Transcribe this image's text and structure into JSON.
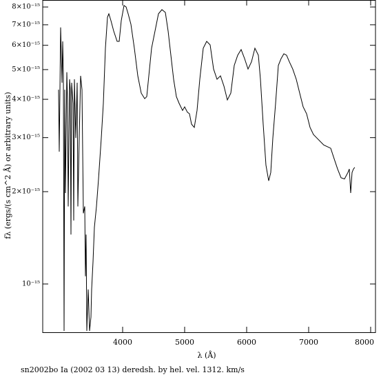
{
  "chart_data": {
    "type": "line",
    "xlabel": "λ (Å)",
    "ylabel": "fλ (ergs/(s cm^2 Å) or arbitrary units)",
    "footer": "sn2002bo Ia (2002 03 13) deredsh. by hel. vel.  1312. km/s",
    "color": "#000000",
    "log_y": true,
    "xlim": [
      2711,
      8078
    ],
    "ylim": [
      6.96e-16,
      8.43e-15
    ],
    "xticks": [
      4000,
      5000,
      6000,
      7000,
      8000
    ],
    "yticks": [
      {
        "value": 1e-15,
        "label": "10⁻¹⁵"
      },
      {
        "value": 2e-15,
        "label": "2×10⁻¹⁵"
      },
      {
        "value": 3e-15,
        "label": "3×10⁻¹⁵"
      },
      {
        "value": 4e-15,
        "label": "4×10⁻¹⁵"
      },
      {
        "value": 5e-15,
        "label": "5×10⁻¹⁵"
      },
      {
        "value": 6e-15,
        "label": "6×10⁻¹⁵"
      },
      {
        "value": 7e-15,
        "label": "7×10⁻¹⁵"
      },
      {
        "value": 8e-15,
        "label": "8×10⁻¹⁵"
      }
    ],
    "x": [
      2967,
      2978,
      3000,
      3022,
      3033,
      3044,
      3056,
      3067,
      3078,
      3100,
      3111,
      3122,
      3144,
      3156,
      3167,
      3178,
      3200,
      3211,
      3222,
      3244,
      3267,
      3278,
      3300,
      3322,
      3344,
      3367,
      3389,
      3400,
      3411,
      3422,
      3444,
      3467,
      3489,
      3500,
      3522,
      3544,
      3578,
      3611,
      3656,
      3689,
      3722,
      3756,
      3778,
      3811,
      3856,
      3911,
      3944,
      3978,
      4022,
      4056,
      4089,
      4133,
      4189,
      4244,
      4300,
      4356,
      4389,
      4422,
      4467,
      4522,
      4578,
      4633,
      4689,
      4733,
      4778,
      4822,
      4867,
      4911,
      4967,
      5000,
      5044,
      5078,
      5111,
      5156,
      5200,
      5244,
      5300,
      5356,
      5411,
      5467,
      5522,
      5578,
      5633,
      5689,
      5744,
      5800,
      5856,
      5911,
      5967,
      6022,
      6078,
      6133,
      6189,
      6222,
      6267,
      6311,
      6356,
      6389,
      6422,
      6467,
      6511,
      6556,
      6600,
      6644,
      6689,
      6744,
      6800,
      6856,
      6911,
      6967,
      7022,
      7078,
      7133,
      7244,
      7356,
      7411,
      7467,
      7522,
      7578,
      7633,
      7656,
      7678,
      7700,
      7722,
      7744
    ],
    "values": [
      4.3e-15,
      2.7e-15,
      6.86e-15,
      4.53e-15,
      6.18e-15,
      4.77e-15,
      7.03e-16,
      4.3e-15,
      1.98e-15,
      4.9e-15,
      3.88e-15,
      1.79e-15,
      4.65e-15,
      4.3e-15,
      1.45e-15,
      4.53e-15,
      3.88e-15,
      1.61e-15,
      4.65e-15,
      2.99e-15,
      4.53e-15,
      1.79e-15,
      2.99e-15,
      4.77e-15,
      4.3e-15,
      1.7e-15,
      1.79e-15,
      1.06e-15,
      1.45e-15,
      7.03e-16,
      9.6e-16,
      7.03e-16,
      7.8e-16,
      9.6e-16,
      1.18e-15,
      1.53e-15,
      1.79e-15,
      2.2e-15,
      2.99e-15,
      3.88e-15,
      5.87e-15,
      7.41e-15,
      7.6e-15,
      7.22e-15,
      6.68e-15,
      6.18e-15,
      6.18e-15,
      7.22e-15,
      8.09e-15,
      8e-15,
      7.6e-15,
      7.03e-15,
      5.87e-15,
      4.77e-15,
      4.19e-15,
      4.02e-15,
      4.08e-15,
      4.77e-15,
      5.87e-15,
      6.68e-15,
      7.6e-15,
      7.84e-15,
      7.68e-15,
      6.68e-15,
      5.57e-15,
      4.65e-15,
      4.08e-15,
      3.88e-15,
      3.68e-15,
      3.78e-15,
      3.63e-15,
      3.59e-15,
      3.32e-15,
      3.24e-15,
      3.68e-15,
      4.65e-15,
      5.87e-15,
      6.18e-15,
      6.02e-15,
      5.02e-15,
      4.65e-15,
      4.77e-15,
      4.42e-15,
      3.98e-15,
      4.19e-15,
      5.16e-15,
      5.57e-15,
      5.81e-15,
      5.43e-15,
      5.02e-15,
      5.3e-15,
      5.87e-15,
      5.57e-15,
      4.65e-15,
      3.32e-15,
      2.44e-15,
      2.17e-15,
      2.31e-15,
      2.99e-15,
      3.88e-15,
      5.16e-15,
      5.43e-15,
      5.63e-15,
      5.57e-15,
      5.3e-15,
      5.02e-15,
      4.65e-15,
      4.19e-15,
      3.78e-15,
      3.59e-15,
      3.24e-15,
      3.07e-15,
      2.99e-15,
      2.84e-15,
      2.77e-15,
      2.56e-15,
      2.37e-15,
      2.22e-15,
      2.2e-15,
      2.31e-15,
      2.37e-15,
      1.98e-15,
      2.31e-15,
      2.37e-15,
      2.4e-15
    ]
  }
}
